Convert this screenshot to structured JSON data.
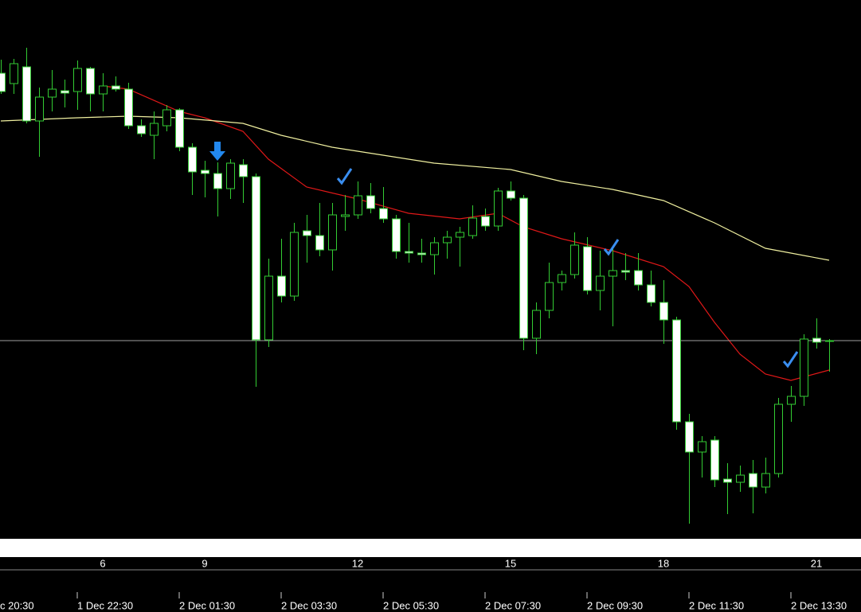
{
  "chart_data": {
    "type": "candlestick",
    "bull_fill": "#000000",
    "bear_fill": "#ffffff",
    "candle_color": "#33cc33",
    "open": [
      583,
      570,
      591,
      523,
      553,
      561,
      560,
      589,
      557,
      567,
      563,
      517,
      505,
      517,
      537,
      490,
      461,
      457,
      438,
      468,
      453,
      248,
      328,
      303,
      385,
      379,
      361,
      403,
      405,
      429,
      413,
      400,
      359,
      357,
      355,
      370,
      377,
      379,
      403,
      391,
      435,
      426,
      250,
      285,
      320,
      330,
      365,
      310,
      328,
      335,
      335,
      317,
      295,
      273,
      145,
      107,
      122,
      73,
      69,
      80,
      63,
      80,
      167,
      177,
      250,
      246
    ],
    "high": [
      600,
      601,
      615,
      565,
      587,
      575,
      599,
      591,
      583,
      579,
      571,
      525,
      535,
      543,
      539,
      495,
      473,
      471,
      475,
      475,
      457,
      350,
      375,
      395,
      405,
      420,
      420,
      430,
      447,
      445,
      440,
      405,
      395,
      375,
      377,
      385,
      390,
      417,
      413,
      439,
      447,
      430,
      295,
      345,
      335,
      383,
      377,
      360,
      363,
      357,
      357,
      335,
      323,
      277,
      155,
      127,
      127,
      93,
      90,
      97,
      100,
      175,
      190,
      255,
      275,
      249
    ],
    "low": [
      557,
      557,
      520,
      478,
      535,
      540,
      537,
      535,
      535,
      560,
      513,
      503,
      475,
      510,
      485,
      430,
      427,
      403,
      425,
      420,
      189,
      239,
      295,
      297,
      345,
      353,
      335,
      385,
      400,
      407,
      395,
      350,
      345,
      345,
      330,
      350,
      340,
      375,
      385,
      385,
      423,
      235,
      230,
      275,
      310,
      325,
      305,
      285,
      265,
      323,
      310,
      290,
      243,
      135,
      17,
      75,
      63,
      29,
      57,
      30,
      55,
      75,
      145,
      165,
      237,
      208
    ],
    "close": [
      560,
      595,
      523,
      553,
      563,
      558,
      589,
      557,
      567,
      563,
      517,
      507,
      520,
      537,
      490,
      459,
      457,
      438,
      470,
      453,
      248,
      328,
      303,
      383,
      379,
      361,
      405,
      405,
      429,
      413,
      400,
      359,
      357,
      355,
      370,
      377,
      383,
      401,
      391,
      435,
      426,
      250,
      285,
      320,
      330,
      367,
      310,
      328,
      335,
      333,
      317,
      295,
      273,
      145,
      107,
      120,
      72,
      69,
      78,
      63,
      80,
      167,
      177,
      249,
      245,
      247
    ],
    "lines": [
      {
        "color": "#e01818",
        "x": [
          8,
          10,
          14,
          16,
          19,
          21,
          24,
          28,
          32,
          36,
          39,
          41,
          44,
          48,
          52,
          54,
          56,
          58,
          60,
          62,
          65
        ],
        "values": [
          567,
          563,
          535,
          527,
          510,
          475,
          440,
          425,
          407,
          400,
          407,
          390,
          375,
          360,
          340,
          315,
          270,
          230,
          205,
          197,
          210
        ]
      },
      {
        "color": "#f0f0a0",
        "x": [
          0,
          6,
          10,
          14,
          19,
          22,
          26,
          30,
          34,
          40,
          44,
          48,
          52,
          56,
          60,
          65
        ],
        "values": [
          523,
          527,
          529,
          527,
          520,
          505,
          490,
          480,
          470,
          462,
          447,
          437,
          423,
          395,
          363,
          348
        ]
      }
    ],
    "price_line": {
      "value": 247,
      "color": "#a0a0a0"
    },
    "ylim": [
      0,
      675
    ],
    "xlim": [
      -0.0625,
      67.5
    ],
    "index_labels": [
      {
        "value": 8,
        "label": "6"
      },
      {
        "value": 16,
        "label": "9"
      },
      {
        "value": 28,
        "label": "12"
      },
      {
        "value": 40,
        "label": "15"
      },
      {
        "value": 52,
        "label": "18"
      },
      {
        "value": 64,
        "label": "21"
      }
    ],
    "time_labels": [
      {
        "value": -2,
        "label": "c 20:30"
      },
      {
        "value": 6,
        "label": "1 Dec 22:30"
      },
      {
        "value": 14,
        "label": "2 Dec 01:30"
      },
      {
        "value": 22,
        "label": "2 Dec 03:30"
      },
      {
        "value": 30,
        "label": "2 Dec 05:30"
      },
      {
        "value": 38,
        "label": "2 Dec 07:30"
      },
      {
        "value": 46,
        "label": "2 Dec 09:30"
      },
      {
        "value": 54,
        "label": "2 Dec 11:30"
      },
      {
        "value": 62,
        "label": "2 Dec 13:30"
      }
    ]
  }
}
